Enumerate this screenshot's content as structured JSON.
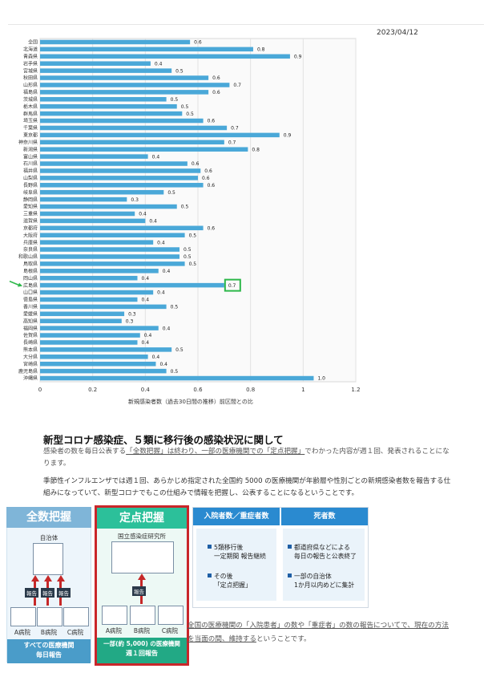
{
  "header": {
    "date": "2023/04/12"
  },
  "chart_data": {
    "type": "bar",
    "orientation": "horizontal",
    "categories": [
      "全国",
      "北海道",
      "青森県",
      "岩手県",
      "宮城県",
      "秋田県",
      "山形県",
      "福島県",
      "茨城県",
      "栃木県",
      "群馬県",
      "埼玉県",
      "千葉県",
      "東京都",
      "神奈川県",
      "新潟県",
      "富山県",
      "石川県",
      "福井県",
      "山梨県",
      "長野県",
      "岐阜県",
      "静岡県",
      "愛知県",
      "三重県",
      "滋賀県",
      "京都府",
      "大阪府",
      "兵庫県",
      "奈良県",
      "和歌山県",
      "鳥取県",
      "島根県",
      "岡山県",
      "広島県",
      "山口県",
      "徳島県",
      "香川県",
      "愛媛県",
      "高知県",
      "福岡県",
      "佐賀県",
      "長崎県",
      "熊本県",
      "大分県",
      "宮崎県",
      "鹿児島県",
      "沖縄県"
    ],
    "values": [
      0.57,
      0.81,
      0.95,
      0.42,
      0.5,
      0.64,
      0.72,
      0.64,
      0.48,
      0.52,
      0.54,
      0.62,
      0.71,
      0.91,
      0.7,
      0.79,
      0.41,
      0.56,
      0.61,
      0.6,
      0.62,
      0.47,
      0.33,
      0.52,
      0.36,
      0.4,
      0.62,
      0.55,
      0.43,
      0.53,
      0.53,
      0.55,
      0.45,
      0.37,
      0.7,
      0.43,
      0.37,
      0.48,
      0.32,
      0.31,
      0.45,
      0.38,
      0.37,
      0.5,
      0.41,
      0.44,
      0.48,
      1.04
    ],
    "value_labels": [
      "0.6",
      "0.8",
      "0.9",
      "0.4",
      "0.5",
      "0.6",
      "0.7",
      "0.6",
      "0.5",
      "0.5",
      "0.5",
      "0.6",
      "0.7",
      "0.9",
      "0.7",
      "0.8",
      "0.4",
      "0.6",
      "0.6",
      "0.6",
      "0.6",
      "0.5",
      "0.3",
      "0.5",
      "0.4",
      "0.4",
      "0.6",
      "0.5",
      "0.4",
      "0.5",
      "0.5",
      "0.5",
      "0.4",
      "0.4",
      "0.7",
      "0.4",
      "0.4",
      "0.5",
      "0.3",
      "0.3",
      "0.4",
      "0.4",
      "0.4",
      "0.5",
      "0.4",
      "0.4",
      "0.5",
      "1.0"
    ],
    "highlight_category": "広島県",
    "xlabel": "新規感染者数（過去30日間の推移）前区間との比",
    "xlim": [
      0,
      1.2
    ],
    "xticks": [
      "0",
      "0.2",
      "0.4",
      "0.6",
      "0.8",
      "1",
      "1.2"
    ],
    "grid": true,
    "colors": {
      "bar": "#4aa8d8",
      "highlight_box": "#2db84a",
      "arrow": "#2db84a"
    }
  },
  "article": {
    "title": "新型コロナ感染症、５類に移行後の感染状況に関して",
    "p1_a": "感染者の数を毎日公表する",
    "p1_b": "「全数把握」は終わり、一部の医療機関での「定点把握」",
    "p1_c": "でわかった内容が週１回、発表されることになります。",
    "p2": "季節性インフルエンザでは週１回、あらかじめ指定された全国約 5000 の医療機関が年齢層や性別ごとの新規感染者数を報告する仕組みになっていて、新型コロナでもこの仕組みで情報を把握し、公表することになるということです。"
  },
  "infographic": {
    "left": {
      "title": "全数把握",
      "top_label": "自治体",
      "tag": "報告",
      "hospitals": [
        "A病院",
        "B病院",
        "C病院"
      ],
      "footer_1": "すべての医療機関",
      "footer_2": "毎日報告",
      "header_color": "#7fb5d8",
      "footer_color": "#4a9cc9"
    },
    "middle": {
      "title": "定点把握",
      "top_label": "国立感染症研究所",
      "tag": "報告",
      "hospitals": [
        "A病院",
        "B病院",
        "C病院"
      ],
      "footer_1": "一部(約 5,000) の医療機関",
      "footer_2": "週１回報告",
      "header_color": "#2cc09a",
      "footer_color": "#22a985",
      "border_color": "#c9262a"
    },
    "right": {
      "col1_header": "入院者数／重症者数",
      "col2_header": "死者数",
      "col1_items": [
        [
          "5類移行後",
          "一定期間 報告継続"
        ],
        [
          "その後",
          "「定点把握」"
        ]
      ],
      "col2_items": [
        [
          "都道府県などによる",
          "毎日の報告と公表終了"
        ],
        [
          "一部の自治体",
          "1か月以内めどに集計"
        ]
      ],
      "header_color": "#2a8ad0"
    }
  },
  "note": {
    "underlined": "全国の医療機関の「入院患者」の数や「重症者」の数の報告についてで、現在の方法を当面の間、維持する",
    "tail": "ということです。"
  }
}
